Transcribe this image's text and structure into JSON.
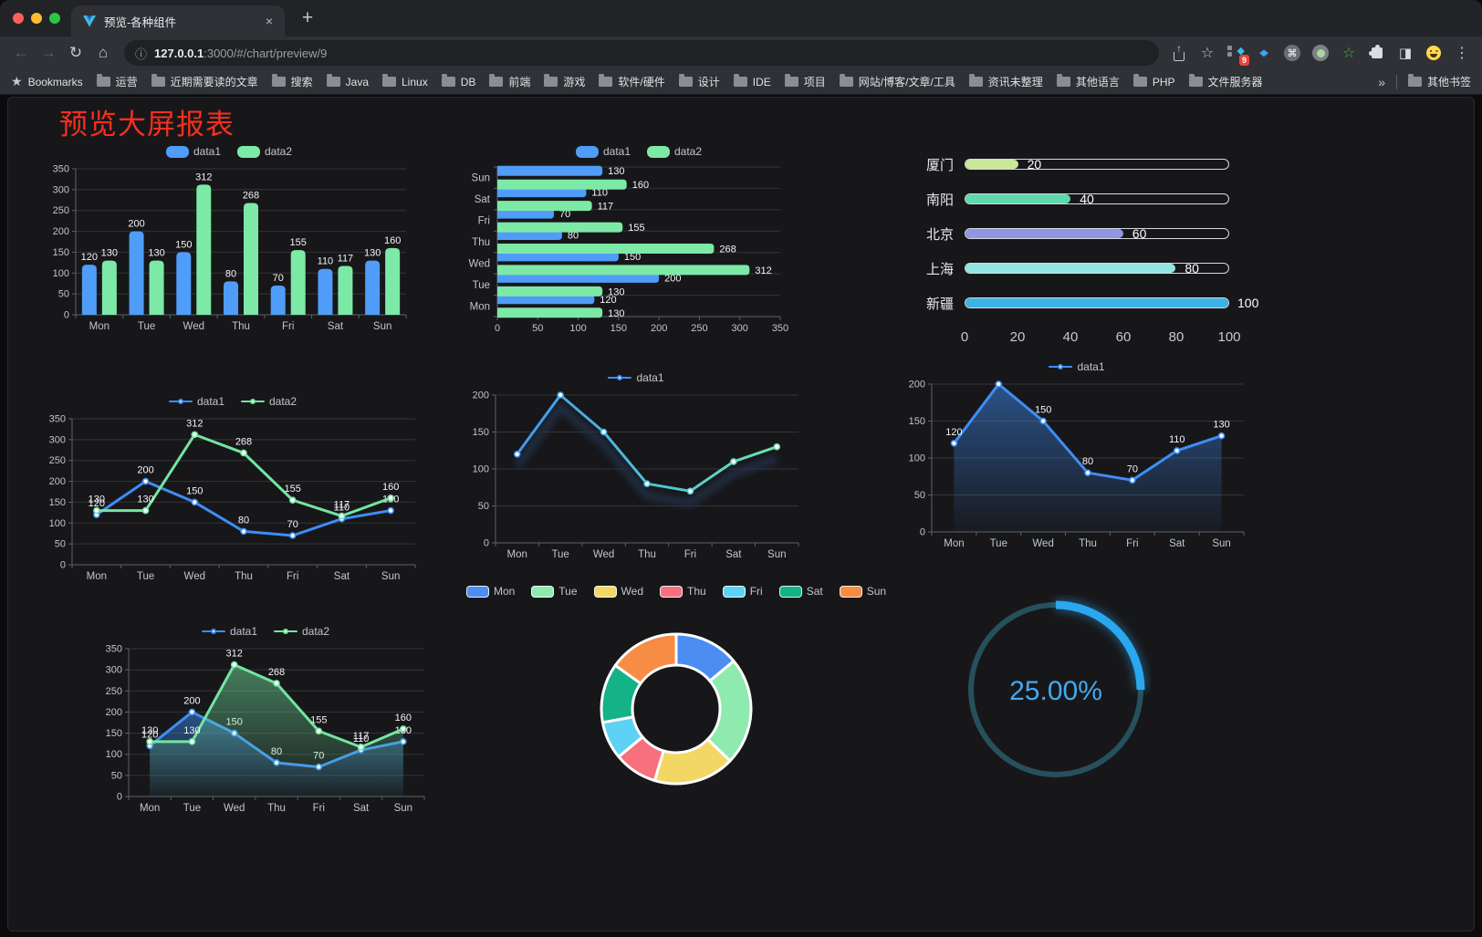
{
  "browser": {
    "tab_title": "预览-各种组件",
    "url_host": "127.0.0.1",
    "url_rest": ":3000/#/chart/preview/9",
    "extension_badge": "9",
    "bookmarks_label": "Bookmarks",
    "bookmarks": [
      "运营",
      "近期需要读的文章",
      "搜索",
      "Java",
      "Linux",
      "DB",
      "前端",
      "游戏",
      "软件/硬件",
      "设计",
      "IDE",
      "项目",
      "网站/博客/文章/工具",
      "资讯未整理",
      "其他语言",
      "PHP",
      "文件服务器"
    ],
    "bookmarks_overflow": "»",
    "other_bookmarks": "其他书签"
  },
  "page": {
    "title": "预览大屏报表"
  },
  "theme": {
    "accent_blue": "#4f9df8",
    "accent_green": "#7de9a6",
    "title_red": "#f5301f",
    "gauge_blue": "#2aa7ee"
  },
  "chart_data": [
    {
      "id": "grouped-bar",
      "type": "bar",
      "categories": [
        "Mon",
        "Tue",
        "Wed",
        "Thu",
        "Fri",
        "Sat",
        "Sun"
      ],
      "series": [
        {
          "name": "data1",
          "color": "#4f9df8",
          "values": [
            120,
            200,
            150,
            80,
            70,
            110,
            130
          ]
        },
        {
          "name": "data2",
          "color": "#7de9a6",
          "values": [
            130,
            130,
            312,
            268,
            155,
            117,
            160
          ]
        }
      ],
      "ylim": [
        0,
        350
      ],
      "yticks": [
        0,
        50,
        100,
        150,
        200,
        250,
        300,
        350
      ],
      "legend_position": "top",
      "value_labels": true,
      "grid": true
    },
    {
      "id": "grouped-hbar",
      "type": "hbar",
      "categories_top_to_bottom": [
        "Sun",
        "Sat",
        "Fri",
        "Thu",
        "Wed",
        "Tue",
        "Mon"
      ],
      "series": [
        {
          "name": "data1",
          "color": "#4f9df8",
          "values": [
            130,
            110,
            70,
            80,
            150,
            200,
            120
          ]
        },
        {
          "name": "data2",
          "color": "#7de9a6",
          "values": [
            160,
            117,
            155,
            268,
            312,
            130,
            130
          ]
        }
      ],
      "xlim": [
        0,
        350
      ],
      "xticks": [
        0,
        50,
        100,
        150,
        200,
        250,
        300,
        350
      ],
      "legend_position": "top",
      "value_labels": true,
      "grid": true
    },
    {
      "id": "city-progress",
      "type": "progress",
      "max": 100,
      "items": [
        {
          "label": "厦门",
          "value": 20,
          "color": "#c9e89c"
        },
        {
          "label": "南阳",
          "value": 40,
          "color": "#5fd8ab"
        },
        {
          "label": "北京",
          "value": 60,
          "color": "#9096e2"
        },
        {
          "label": "上海",
          "value": 80,
          "color": "#93e6e1"
        },
        {
          "label": "新疆",
          "value": 100,
          "color": "#3db2e5"
        }
      ],
      "ticks": [
        0,
        20,
        40,
        60,
        80,
        100
      ]
    },
    {
      "id": "line-two-series",
      "type": "line",
      "categories": [
        "Mon",
        "Tue",
        "Wed",
        "Thu",
        "Fri",
        "Sat",
        "Sun"
      ],
      "series": [
        {
          "name": "data1",
          "color": "#3e8ef5",
          "values": [
            120,
            200,
            150,
            80,
            70,
            110,
            130
          ]
        },
        {
          "name": "data2",
          "color": "#74e5a1",
          "values": [
            130,
            130,
            312,
            268,
            155,
            117,
            160
          ]
        }
      ],
      "ylim": [
        0,
        350
      ],
      "yticks": [
        0,
        50,
        100,
        150,
        200,
        250,
        300,
        350
      ],
      "legend_position": "top",
      "value_labels": true,
      "grid": true
    },
    {
      "id": "line-gradient",
      "type": "line",
      "shadow": true,
      "categories": [
        "Mon",
        "Tue",
        "Wed",
        "Thu",
        "Fri",
        "Sat",
        "Sun"
      ],
      "series": [
        {
          "name": "data1",
          "color": "#3f90f5",
          "gradient": [
            "#3f90f5",
            "#4fc0d8",
            "#72e8a5"
          ],
          "values": [
            120,
            200,
            150,
            80,
            70,
            110,
            130
          ]
        }
      ],
      "ylim": [
        0,
        200
      ],
      "yticks": [
        0,
        50,
        100,
        150,
        200
      ],
      "legend_position": "top",
      "value_labels": false,
      "grid": true
    },
    {
      "id": "area-single",
      "type": "line",
      "categories": [
        "Mon",
        "Tue",
        "Wed",
        "Thu",
        "Fri",
        "Sat",
        "Sun"
      ],
      "series": [
        {
          "name": "data1",
          "color": "#3e8ef5",
          "area": true,
          "values": [
            120,
            200,
            150,
            80,
            70,
            110,
            130
          ]
        }
      ],
      "ylim": [
        0,
        200
      ],
      "yticks": [
        0,
        50,
        100,
        150,
        200
      ],
      "legend_position": "top",
      "value_labels": true,
      "grid": true
    },
    {
      "id": "area-two-series",
      "type": "line",
      "categories": [
        "Mon",
        "Tue",
        "Wed",
        "Thu",
        "Fri",
        "Sat",
        "Sun"
      ],
      "series": [
        {
          "name": "data1",
          "color": "#3e8ef5",
          "area": true,
          "values": [
            120,
            200,
            150,
            80,
            70,
            110,
            130
          ]
        },
        {
          "name": "data2",
          "color": "#74e5a1",
          "area": true,
          "values": [
            130,
            130,
            312,
            268,
            155,
            117,
            160
          ]
        }
      ],
      "ylim": [
        0,
        350
      ],
      "yticks": [
        0,
        50,
        100,
        150,
        200,
        250,
        300,
        350
      ],
      "legend_position": "top",
      "value_labels": true,
      "grid": true
    },
    {
      "id": "weekday-donut",
      "type": "donut",
      "inner_radius_ratio": 0.58,
      "legend_position": "top",
      "slices": [
        {
          "name": "Mon",
          "value": 120,
          "color": "#4c8df2"
        },
        {
          "name": "Tue",
          "value": 200,
          "color": "#8feab0"
        },
        {
          "name": "Wed",
          "value": 150,
          "color": "#f3d765"
        },
        {
          "name": "Thu",
          "value": 80,
          "color": "#f8707e"
        },
        {
          "name": "Fri",
          "value": 70,
          "color": "#5ed2f5"
        },
        {
          "name": "Sat",
          "value": 110,
          "color": "#13b287"
        },
        {
          "name": "Sun",
          "value": 130,
          "color": "#f78d44"
        }
      ]
    },
    {
      "id": "percent-gauge",
      "type": "gauge",
      "value": 25,
      "max": 100,
      "label": "25.00%",
      "color": "#2aa7ee",
      "track_color": "#26505c",
      "text_color": "#43a9f0"
    }
  ]
}
